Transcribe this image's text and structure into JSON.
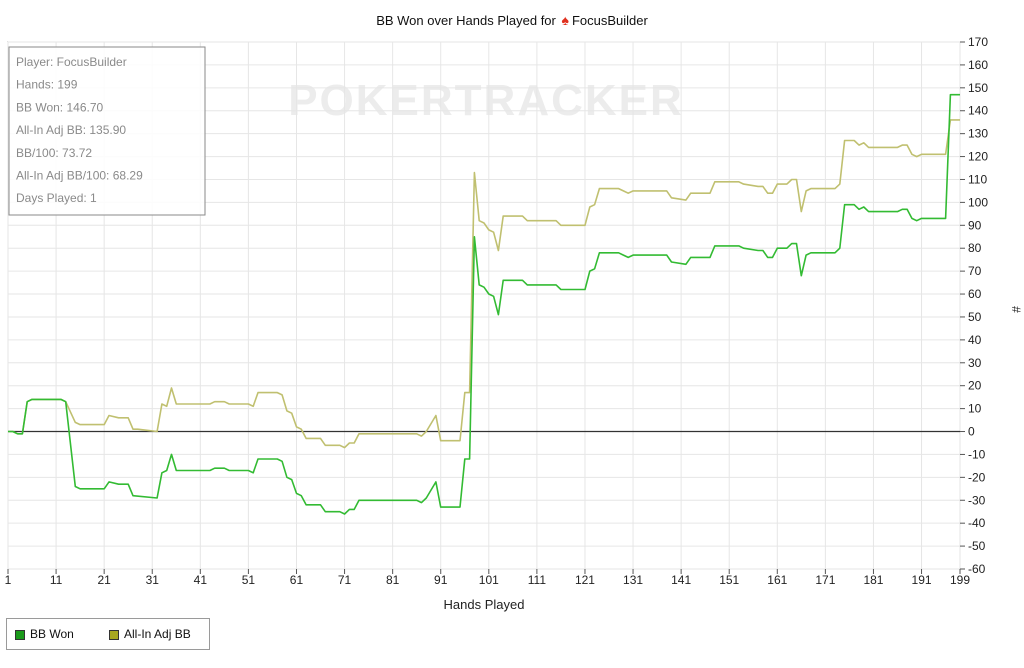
{
  "chart_data": {
    "type": "line",
    "title": "BB Won over Hands Played for",
    "title_player": "FocusBuilder",
    "xlabel": "Hands Played",
    "ylabel": "#",
    "xlim": [
      1,
      199
    ],
    "ylim": [
      -60,
      170
    ],
    "x_ticks": [
      1,
      11,
      21,
      31,
      41,
      51,
      61,
      71,
      81,
      91,
      101,
      111,
      121,
      131,
      141,
      151,
      161,
      171,
      181,
      191,
      199
    ],
    "y_ticks": [
      170,
      160,
      150,
      140,
      130,
      120,
      110,
      100,
      90,
      80,
      70,
      60,
      50,
      40,
      30,
      20,
      10,
      0,
      -10,
      -20,
      -30,
      -40,
      -50,
      -60
    ],
    "grid": true,
    "watermark": "POKERTRACKER",
    "stats_box": [
      "Player: FocusBuilder",
      "Hands: 199",
      "BB Won: 146.70",
      "All-In Adj BB: 135.90",
      "BB/100: 73.72",
      "All-In Adj BB/100: 68.29",
      "Days Played: 1"
    ],
    "legend_position": "bottom-left",
    "series": [
      {
        "name": "BB Won",
        "color": "#33bb33",
        "legend_color": "#1a9a1a",
        "points": [
          [
            1,
            0
          ],
          [
            2,
            0
          ],
          [
            3,
            -1
          ],
          [
            4,
            -1
          ],
          [
            5,
            13
          ],
          [
            6,
            14
          ],
          [
            12,
            14
          ],
          [
            13,
            13
          ],
          [
            15,
            -24
          ],
          [
            16,
            -25
          ],
          [
            21,
            -25
          ],
          [
            22,
            -22
          ],
          [
            24,
            -23
          ],
          [
            26,
            -23
          ],
          [
            27,
            -28
          ],
          [
            32,
            -29
          ],
          [
            33,
            -18
          ],
          [
            34,
            -17
          ],
          [
            35,
            -10
          ],
          [
            36,
            -17
          ],
          [
            43,
            -17
          ],
          [
            44,
            -16
          ],
          [
            46,
            -16
          ],
          [
            47,
            -17
          ],
          [
            51,
            -17
          ],
          [
            52,
            -18
          ],
          [
            53,
            -12
          ],
          [
            57,
            -12
          ],
          [
            58,
            -13
          ],
          [
            59,
            -20
          ],
          [
            60,
            -21
          ],
          [
            61,
            -27
          ],
          [
            62,
            -28
          ],
          [
            63,
            -32
          ],
          [
            66,
            -32
          ],
          [
            67,
            -35
          ],
          [
            70,
            -35
          ],
          [
            71,
            -36
          ],
          [
            72,
            -34
          ],
          [
            73,
            -34
          ],
          [
            74,
            -30
          ],
          [
            80,
            -30
          ],
          [
            81,
            -30
          ],
          [
            86,
            -30
          ],
          [
            87,
            -31
          ],
          [
            88,
            -29
          ],
          [
            90,
            -22
          ],
          [
            91,
            -33
          ],
          [
            95,
            -33
          ],
          [
            96,
            -12
          ],
          [
            97,
            -12
          ],
          [
            98,
            85
          ],
          [
            99,
            64
          ],
          [
            100,
            63
          ],
          [
            101,
            60
          ],
          [
            102,
            59
          ],
          [
            103,
            51
          ],
          [
            104,
            66
          ],
          [
            108,
            66
          ],
          [
            109,
            64
          ],
          [
            115,
            64
          ],
          [
            116,
            62
          ],
          [
            121,
            62
          ],
          [
            122,
            70
          ],
          [
            123,
            71
          ],
          [
            124,
            78
          ],
          [
            128,
            78
          ],
          [
            129,
            77
          ],
          [
            130,
            76
          ],
          [
            131,
            77
          ],
          [
            138,
            77
          ],
          [
            139,
            74
          ],
          [
            142,
            73
          ],
          [
            143,
            76
          ],
          [
            147,
            76
          ],
          [
            148,
            81
          ],
          [
            153,
            81
          ],
          [
            154,
            80
          ],
          [
            157,
            79
          ],
          [
            158,
            79
          ],
          [
            159,
            76
          ],
          [
            160,
            76
          ],
          [
            161,
            80
          ],
          [
            163,
            80
          ],
          [
            164,
            82
          ],
          [
            165,
            82
          ],
          [
            166,
            68
          ],
          [
            167,
            77
          ],
          [
            168,
            78
          ],
          [
            173,
            78
          ],
          [
            174,
            80
          ],
          [
            175,
            99
          ],
          [
            177,
            99
          ],
          [
            178,
            97
          ],
          [
            179,
            98
          ],
          [
            180,
            96
          ],
          [
            186,
            96
          ],
          [
            187,
            97
          ],
          [
            188,
            97
          ],
          [
            189,
            93
          ],
          [
            190,
            92
          ],
          [
            191,
            93
          ],
          [
            196,
            93
          ],
          [
            197,
            147
          ],
          [
            199,
            147
          ]
        ]
      },
      {
        "name": "All-In Adj BB",
        "color": "#c0c070",
        "legend_color": "#a8a820",
        "points": [
          [
            1,
            0
          ],
          [
            2,
            0
          ],
          [
            3,
            -1
          ],
          [
            4,
            -1
          ],
          [
            5,
            13
          ],
          [
            6,
            14
          ],
          [
            12,
            14
          ],
          [
            13,
            13
          ],
          [
            15,
            4
          ],
          [
            16,
            3
          ],
          [
            21,
            3
          ],
          [
            22,
            7
          ],
          [
            24,
            6
          ],
          [
            26,
            6
          ],
          [
            27,
            1
          ],
          [
            28,
            1
          ],
          [
            32,
            0
          ],
          [
            33,
            12
          ],
          [
            34,
            11
          ],
          [
            35,
            19
          ],
          [
            36,
            12
          ],
          [
            43,
            12
          ],
          [
            44,
            13
          ],
          [
            46,
            13
          ],
          [
            47,
            12
          ],
          [
            51,
            12
          ],
          [
            52,
            11
          ],
          [
            53,
            17
          ],
          [
            57,
            17
          ],
          [
            58,
            16
          ],
          [
            59,
            9
          ],
          [
            60,
            8
          ],
          [
            61,
            2
          ],
          [
            62,
            1
          ],
          [
            63,
            -3
          ],
          [
            66,
            -3
          ],
          [
            67,
            -6
          ],
          [
            70,
            -6
          ],
          [
            71,
            -7
          ],
          [
            72,
            -5
          ],
          [
            73,
            -5
          ],
          [
            74,
            -1
          ],
          [
            80,
            -1
          ],
          [
            81,
            -1
          ],
          [
            86,
            -1
          ],
          [
            87,
            -2
          ],
          [
            88,
            0
          ],
          [
            90,
            7
          ],
          [
            91,
            -4
          ],
          [
            95,
            -4
          ],
          [
            96,
            17
          ],
          [
            97,
            17
          ],
          [
            98,
            113
          ],
          [
            99,
            92
          ],
          [
            100,
            91
          ],
          [
            101,
            88
          ],
          [
            102,
            87
          ],
          [
            103,
            79
          ],
          [
            104,
            94
          ],
          [
            108,
            94
          ],
          [
            109,
            92
          ],
          [
            115,
            92
          ],
          [
            116,
            90
          ],
          [
            121,
            90
          ],
          [
            122,
            98
          ],
          [
            123,
            99
          ],
          [
            124,
            106
          ],
          [
            128,
            106
          ],
          [
            129,
            105
          ],
          [
            130,
            104
          ],
          [
            131,
            105
          ],
          [
            138,
            105
          ],
          [
            139,
            102
          ],
          [
            142,
            101
          ],
          [
            143,
            104
          ],
          [
            147,
            104
          ],
          [
            148,
            109
          ],
          [
            153,
            109
          ],
          [
            154,
            108
          ],
          [
            157,
            107
          ],
          [
            158,
            107
          ],
          [
            159,
            104
          ],
          [
            160,
            104
          ],
          [
            161,
            108
          ],
          [
            163,
            108
          ],
          [
            164,
            110
          ],
          [
            165,
            110
          ],
          [
            166,
            96
          ],
          [
            167,
            105
          ],
          [
            168,
            106
          ],
          [
            173,
            106
          ],
          [
            174,
            108
          ],
          [
            175,
            127
          ],
          [
            177,
            127
          ],
          [
            178,
            125
          ],
          [
            179,
            126
          ],
          [
            180,
            124
          ],
          [
            186,
            124
          ],
          [
            187,
            125
          ],
          [
            188,
            125
          ],
          [
            189,
            121
          ],
          [
            190,
            120
          ],
          [
            191,
            121
          ],
          [
            196,
            121
          ],
          [
            197,
            136
          ],
          [
            199,
            136
          ]
        ]
      }
    ]
  }
}
